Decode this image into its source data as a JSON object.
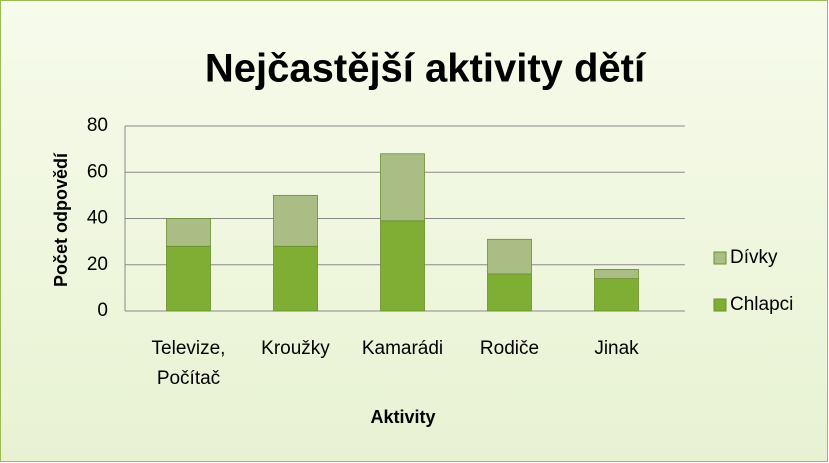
{
  "chart_data": {
    "type": "stacked_bar",
    "title": "Nejčastější aktivity dětí",
    "x_label": "Aktivity",
    "y_label": "Počet odpovědí",
    "categories": [
      "Televize, Počítač",
      "Kroužky",
      "Kamarádi",
      "Rodiče",
      "Jinak"
    ],
    "series": [
      {
        "name": "Chlapci",
        "color": "#7fae35",
        "values": [
          28,
          28,
          39,
          16,
          14
        ]
      },
      {
        "name": "Dívky",
        "color": "#a9bd85",
        "values": [
          12,
          22,
          29,
          15,
          4
        ]
      }
    ],
    "ylim": [
      0,
      80
    ],
    "yticks": [
      0,
      20,
      40,
      60,
      80
    ],
    "grid": true,
    "legend": "right"
  }
}
